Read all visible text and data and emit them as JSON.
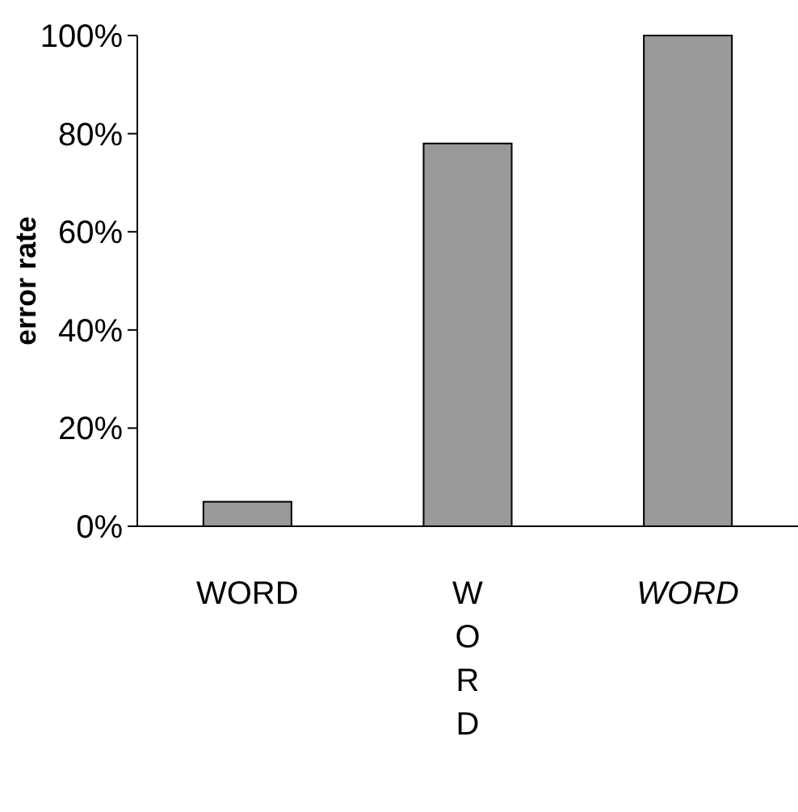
{
  "chart_data": {
    "type": "bar",
    "ylabel": "error rate",
    "categories": [
      "WORD",
      "WORD",
      "WORD"
    ],
    "values": [
      5,
      78,
      100
    ],
    "color": "#999999",
    "ylim": [
      0,
      100
    ],
    "yticks": [
      {
        "value": 0,
        "label": "0%"
      },
      {
        "value": 20,
        "label": "20%"
      },
      {
        "value": 40,
        "label": "40%"
      },
      {
        "value": 60,
        "label": "60%"
      },
      {
        "value": 80,
        "label": "80%"
      },
      {
        "value": 100,
        "label": "100%"
      }
    ],
    "grid": false
  }
}
